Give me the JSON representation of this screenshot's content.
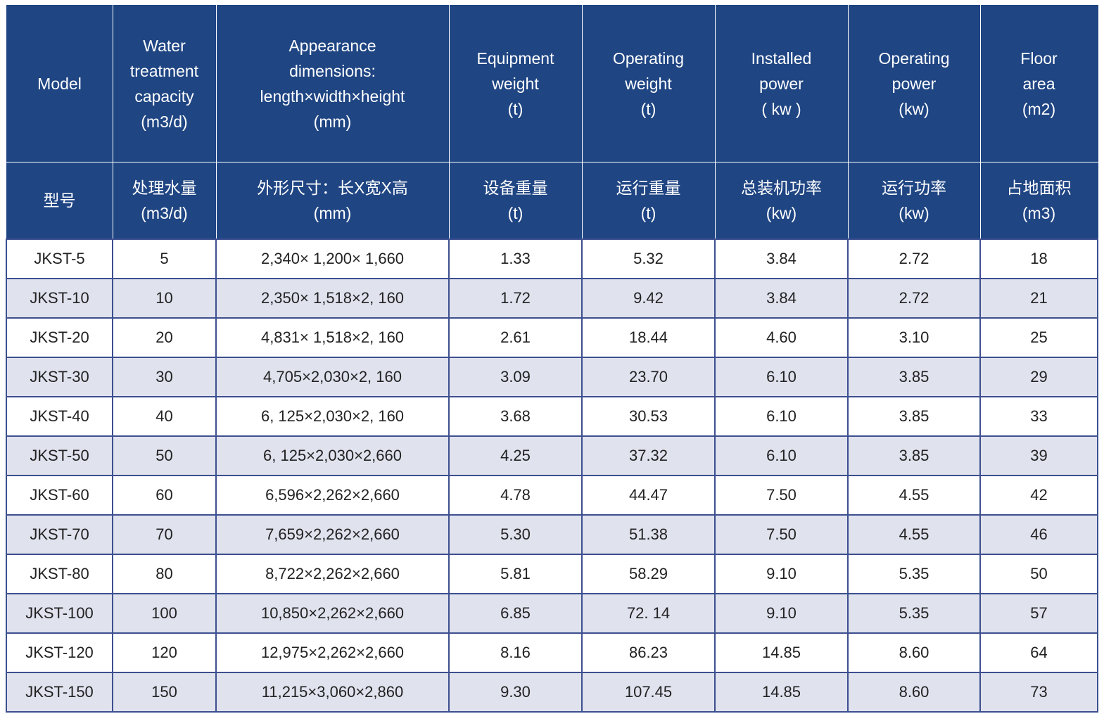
{
  "table": {
    "columns": [
      {
        "en": [
          "Model"
        ],
        "zh": [
          "型号"
        ]
      },
      {
        "en": [
          "Water",
          "treatment",
          "capacity",
          "(m3/d)"
        ],
        "zh": [
          "处理水量",
          "(m3/d)"
        ]
      },
      {
        "en": [
          "Appearance",
          "dimensions:",
          "length×width×height",
          "(mm)"
        ],
        "zh": [
          "外形尺寸：长X宽X高",
          "(mm)"
        ]
      },
      {
        "en": [
          "Equipment",
          "weight",
          "(t)"
        ],
        "zh": [
          "设备重量",
          "(t)"
        ]
      },
      {
        "en": [
          "Operating",
          "weight",
          "(t)"
        ],
        "zh": [
          "运行重量",
          "(t)"
        ]
      },
      {
        "en": [
          "Installed",
          "power",
          "( kw )"
        ],
        "zh": [
          "总装机功率",
          "(kw)"
        ]
      },
      {
        "en": [
          "Operating",
          "power",
          "(kw)"
        ],
        "zh": [
          "运行功率",
          "(kw)"
        ]
      },
      {
        "en": [
          "Floor",
          "area",
          "(m2)"
        ],
        "zh": [
          "占地面积",
          "(m3)"
        ]
      }
    ],
    "rows": [
      [
        "JKST-5",
        "5",
        "2,340× 1,200× 1,660",
        "1.33",
        "5.32",
        "3.84",
        "2.72",
        "18"
      ],
      [
        "JKST-10",
        "10",
        "2,350× 1,518×2, 160",
        "1.72",
        "9.42",
        "3.84",
        "2.72",
        "21"
      ],
      [
        "JKST-20",
        "20",
        "4,831× 1,518×2, 160",
        "2.61",
        "18.44",
        "4.60",
        "3.10",
        "25"
      ],
      [
        "JKST-30",
        "30",
        "4,705×2,030×2, 160",
        "3.09",
        "23.70",
        "6.10",
        "3.85",
        "29"
      ],
      [
        "JKST-40",
        "40",
        "6, 125×2,030×2, 160",
        "3.68",
        "30.53",
        "6.10",
        "3.85",
        "33"
      ],
      [
        "JKST-50",
        "50",
        "6, 125×2,030×2,660",
        "4.25",
        "37.32",
        "6.10",
        "3.85",
        "39"
      ],
      [
        "JKST-60",
        "60",
        "6,596×2,262×2,660",
        "4.78",
        "44.47",
        "7.50",
        "4.55",
        "42"
      ],
      [
        "JKST-70",
        "70",
        "7,659×2,262×2,660",
        "5.30",
        "51.38",
        "7.50",
        "4.55",
        "46"
      ],
      [
        "JKST-80",
        "80",
        "8,722×2,262×2,660",
        "5.81",
        "58.29",
        "9.10",
        "5.35",
        "50"
      ],
      [
        "JKST-100",
        "100",
        "10,850×2,262×2,660",
        "6.85",
        "72. 14",
        "9.10",
        "5.35",
        "57"
      ],
      [
        "JKST-120",
        "120",
        "12,975×2,262×2,660",
        "8.16",
        "86.23",
        "14.85",
        "8.60",
        "64"
      ],
      [
        "JKST-150",
        "150",
        "11,215×3,060×2,860",
        "9.30",
        "107.45",
        "14.85",
        "8.60",
        "73"
      ]
    ]
  },
  "colors": {
    "header_bg": "#1f4583",
    "header_text": "#ffffff",
    "row_alt_bg": "#e0e2ee",
    "grid_line": "#3d4f8f"
  }
}
